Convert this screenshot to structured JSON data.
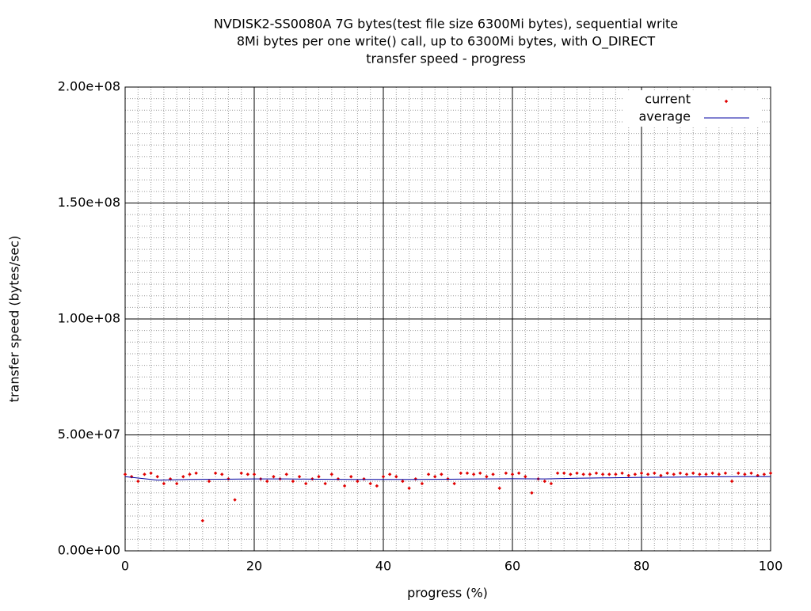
{
  "chart_data": {
    "type": "scatter",
    "title": [
      "NVDISK2-SS0080A 7G bytes(test file size 6300Mi bytes), sequential write",
      "8Mi bytes per one write() call, up to 6300Mi bytes, with O_DIRECT",
      "transfer speed - progress"
    ],
    "xlabel": "progress (%)",
    "ylabel": "transfer speed (bytes/sec)",
    "xlim": [
      0,
      100
    ],
    "xticks": [
      0,
      20,
      40,
      60,
      80,
      100
    ],
    "ylim": [
      0,
      200000000
    ],
    "yticks": [
      {
        "value": 0,
        "label": "0.00e+00"
      },
      {
        "value": 50000000,
        "label": "5.00e+07"
      },
      {
        "value": 100000000,
        "label": "1.00e+08"
      },
      {
        "value": 150000000,
        "label": "1.50e+08"
      },
      {
        "value": 200000000,
        "label": "2.00e+08"
      }
    ],
    "grid": true,
    "minor_grid": true,
    "legend": "upper right",
    "series": [
      {
        "name": "current",
        "color": "#e00000",
        "style": "points",
        "x": [
          0,
          1,
          2,
          3,
          4,
          5,
          6,
          7,
          8,
          9,
          10,
          11,
          12,
          13,
          14,
          15,
          16,
          17,
          18,
          19,
          20,
          21,
          22,
          23,
          24,
          25,
          26,
          27,
          28,
          29,
          30,
          31,
          32,
          33,
          34,
          35,
          36,
          37,
          38,
          39,
          40,
          41,
          42,
          43,
          44,
          45,
          46,
          47,
          48,
          49,
          50,
          51,
          52,
          53,
          54,
          55,
          56,
          57,
          58,
          59,
          60,
          61,
          62,
          63,
          64,
          65,
          66,
          67,
          68,
          69,
          70,
          71,
          72,
          73,
          74,
          75,
          76,
          77,
          78,
          79,
          80,
          81,
          82,
          83,
          84,
          85,
          86,
          87,
          88,
          89,
          90,
          91,
          92,
          93,
          94,
          95,
          96,
          97,
          98,
          99,
          100
        ],
        "values": [
          33000000,
          32000000,
          30000000,
          33000000,
          33500000,
          32000000,
          29000000,
          31000000,
          29000000,
          32000000,
          33000000,
          33500000,
          13000000,
          30000000,
          33500000,
          33000000,
          31000000,
          22000000,
          33500000,
          33000000,
          33000000,
          31000000,
          30000000,
          32000000,
          31000000,
          33000000,
          30000000,
          32000000,
          29000000,
          31000000,
          32000000,
          29000000,
          33000000,
          31000000,
          28000000,
          32000000,
          30000000,
          31000000,
          29000000,
          28000000,
          32000000,
          33000000,
          32000000,
          30000000,
          27000000,
          31000000,
          29000000,
          33000000,
          32000000,
          33000000,
          31000000,
          29000000,
          33500000,
          33500000,
          33000000,
          33500000,
          32000000,
          33000000,
          27000000,
          33500000,
          33000000,
          33500000,
          32000000,
          25000000,
          31000000,
          30000000,
          29000000,
          33500000,
          33500000,
          33000000,
          33500000,
          33000000,
          33000000,
          33500000,
          33000000,
          33000000,
          33000000,
          33500000,
          32500000,
          33000000,
          33500000,
          33000000,
          33500000,
          32500000,
          33500000,
          33000000,
          33500000,
          33000000,
          33500000,
          33000000,
          33000000,
          33500000,
          33000000,
          33500000,
          30000000,
          33500000,
          33000000,
          33500000,
          32500000,
          33000000,
          33500000
        ]
      },
      {
        "name": "average",
        "color": "#0000a0",
        "style": "line",
        "x": [
          0,
          5,
          10,
          15,
          20,
          25,
          30,
          35,
          40,
          45,
          50,
          55,
          60,
          65,
          70,
          75,
          80,
          85,
          90,
          95,
          100
        ],
        "values": [
          32000000,
          30500000,
          30800000,
          30900000,
          31000000,
          31000000,
          30900000,
          30800000,
          30800000,
          30800000,
          30900000,
          31000000,
          31100000,
          31000000,
          31300000,
          31500000,
          31700000,
          31800000,
          31900000,
          32000000,
          32000000
        ]
      }
    ]
  }
}
